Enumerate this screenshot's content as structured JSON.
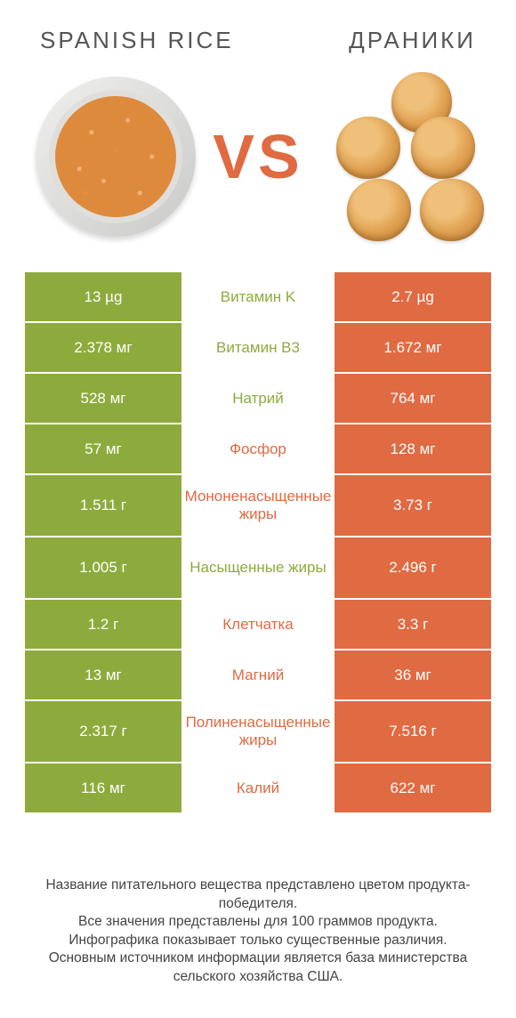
{
  "colors": {
    "green": "#8dab3d",
    "orange": "#e06a42"
  },
  "title_left": "SPANISH RICE",
  "title_right": "ДРАНИКИ",
  "vs": "VS",
  "rows": [
    {
      "left": "13 µg",
      "mid": "Витамин K",
      "mid_color": "green",
      "right": "2.7 µg",
      "tall": false
    },
    {
      "left": "2.378 мг",
      "mid": "Витамин B3",
      "mid_color": "green",
      "right": "1.672 мг",
      "tall": false
    },
    {
      "left": "528 мг",
      "mid": "Натрий",
      "mid_color": "green",
      "right": "764 мг",
      "tall": false
    },
    {
      "left": "57 мг",
      "mid": "Фосфор",
      "mid_color": "orange",
      "right": "128 мг",
      "tall": false
    },
    {
      "left": "1.511 г",
      "mid": "Мононенасыщенные жиры",
      "mid_color": "orange",
      "right": "3.73 г",
      "tall": true
    },
    {
      "left": "1.005 г",
      "mid": "Насыщенные жиры",
      "mid_color": "green",
      "right": "2.496 г",
      "tall": true
    },
    {
      "left": "1.2 г",
      "mid": "Клетчатка",
      "mid_color": "orange",
      "right": "3.3 г",
      "tall": false
    },
    {
      "left": "13 мг",
      "mid": "Магний",
      "mid_color": "orange",
      "right": "36 мг",
      "tall": false
    },
    {
      "left": "2.317 г",
      "mid": "Полиненасыщенные жиры",
      "mid_color": "orange",
      "right": "7.516 г",
      "tall": true
    },
    {
      "left": "116 мг",
      "mid": "Калий",
      "mid_color": "orange",
      "right": "622 мг",
      "tall": false
    }
  ],
  "footer": [
    "Название питательного вещества представлено цветом продукта-победителя.",
    "Все значения представлены для 100 граммов продукта.",
    "Инфографика показывает только существенные различия.",
    "Основным источником информации является база министерства сельского хозяйства США."
  ]
}
